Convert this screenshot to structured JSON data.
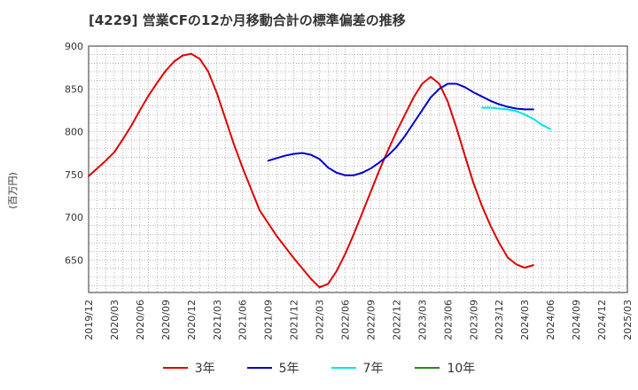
{
  "chart_data": {
    "type": "line",
    "title": "[4229]  営業CFの12か月移動合計の標準偏差の推移",
    "ylabel": "(百万円)",
    "xlabel": "",
    "x_ticks": [
      "2019/12",
      "2020/03",
      "2020/06",
      "2020/09",
      "2020/12",
      "2021/03",
      "2021/06",
      "2021/09",
      "2021/12",
      "2022/03",
      "2022/06",
      "2022/09",
      "2022/12",
      "2023/03",
      "2023/06",
      "2023/09",
      "2023/12",
      "2024/03",
      "2024/06",
      "2024/09",
      "2024/12",
      "2025/03"
    ],
    "y_ticks": [
      650,
      700,
      750,
      800,
      850,
      900
    ],
    "ylim": [
      612,
      900
    ],
    "xlim": [
      "2019/12",
      "2025/03"
    ],
    "grid": true,
    "legend_position": "bottom",
    "series": [
      {
        "name": "3年",
        "color": "#e00000",
        "points": [
          [
            "2019/12",
            748
          ],
          [
            "2020/01",
            757
          ],
          [
            "2020/02",
            766
          ],
          [
            "2020/03",
            776
          ],
          [
            "2020/04",
            791
          ],
          [
            "2020/05",
            807
          ],
          [
            "2020/06",
            825
          ],
          [
            "2020/07",
            842
          ],
          [
            "2020/08",
            857
          ],
          [
            "2020/09",
            871
          ],
          [
            "2020/10",
            882
          ],
          [
            "2020/11",
            889
          ],
          [
            "2020/12",
            891
          ],
          [
            "2021/01",
            885
          ],
          [
            "2021/02",
            870
          ],
          [
            "2021/03",
            845
          ],
          [
            "2021/04",
            815
          ],
          [
            "2021/05",
            785
          ],
          [
            "2021/06",
            758
          ],
          [
            "2021/07",
            733
          ],
          [
            "2021/08",
            708
          ],
          [
            "2021/09",
            693
          ],
          [
            "2021/10",
            678
          ],
          [
            "2021/11",
            665
          ],
          [
            "2021/12",
            652
          ],
          [
            "2022/01",
            640
          ],
          [
            "2022/02",
            628
          ],
          [
            "2022/03",
            618
          ],
          [
            "2022/04",
            622
          ],
          [
            "2022/05",
            637
          ],
          [
            "2022/06",
            657
          ],
          [
            "2022/07",
            680
          ],
          [
            "2022/08",
            705
          ],
          [
            "2022/09",
            730
          ],
          [
            "2022/10",
            755
          ],
          [
            "2022/11",
            778
          ],
          [
            "2022/12",
            800
          ],
          [
            "2023/01",
            820
          ],
          [
            "2023/02",
            840
          ],
          [
            "2023/03",
            856
          ],
          [
            "2023/04",
            864
          ],
          [
            "2023/05",
            856
          ],
          [
            "2023/06",
            835
          ],
          [
            "2023/07",
            805
          ],
          [
            "2023/08",
            772
          ],
          [
            "2023/09",
            740
          ],
          [
            "2023/10",
            713
          ],
          [
            "2023/11",
            690
          ],
          [
            "2023/12",
            670
          ],
          [
            "2024/01",
            653
          ],
          [
            "2024/02",
            645
          ],
          [
            "2024/03",
            641
          ],
          [
            "2024/04",
            644
          ]
        ]
      },
      {
        "name": "5年",
        "color": "#0000cc",
        "points": [
          [
            "2021/09",
            766
          ],
          [
            "2021/10",
            769
          ],
          [
            "2021/11",
            772
          ],
          [
            "2021/12",
            774
          ],
          [
            "2022/01",
            775
          ],
          [
            "2022/02",
            773
          ],
          [
            "2022/03",
            768
          ],
          [
            "2022/04",
            758
          ],
          [
            "2022/05",
            752
          ],
          [
            "2022/06",
            749
          ],
          [
            "2022/07",
            749
          ],
          [
            "2022/08",
            752
          ],
          [
            "2022/09",
            757
          ],
          [
            "2022/10",
            764
          ],
          [
            "2022/11",
            772
          ],
          [
            "2022/12",
            782
          ],
          [
            "2023/01",
            795
          ],
          [
            "2023/02",
            810
          ],
          [
            "2023/03",
            825
          ],
          [
            "2023/04",
            840
          ],
          [
            "2023/05",
            850
          ],
          [
            "2023/06",
            856
          ],
          [
            "2023/07",
            856
          ],
          [
            "2023/08",
            852
          ],
          [
            "2023/09",
            846
          ],
          [
            "2023/10",
            841
          ],
          [
            "2023/11",
            836
          ],
          [
            "2023/12",
            832
          ],
          [
            "2024/01",
            829
          ],
          [
            "2024/02",
            827
          ],
          [
            "2024/03",
            826
          ],
          [
            "2024/04",
            826
          ]
        ]
      },
      {
        "name": "7年",
        "color": "#00e5e5",
        "points": [
          [
            "2023/10",
            828
          ],
          [
            "2023/11",
            828
          ],
          [
            "2023/12",
            827
          ],
          [
            "2024/01",
            826
          ],
          [
            "2024/02",
            824
          ],
          [
            "2024/03",
            820
          ],
          [
            "2024/04",
            815
          ],
          [
            "2024/05",
            808
          ],
          [
            "2024/06",
            803
          ]
        ]
      },
      {
        "name": "10年",
        "color": "#228b22",
        "points": []
      }
    ]
  }
}
